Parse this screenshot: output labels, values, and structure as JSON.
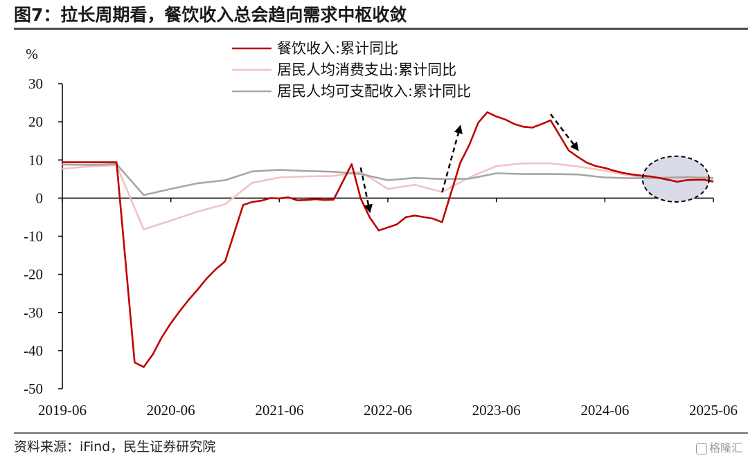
{
  "header": {
    "title": "图7：拉长周期看，餐饮收入总会趋向需求中枢收敛"
  },
  "footer": {
    "source": "资料来源：iFind，民生证券研究院",
    "watermark": "格隆汇"
  },
  "chart_data": {
    "type": "line",
    "title": "图7：拉长周期看，餐饮收入总会趋向需求中枢收敛",
    "ylabel": "%",
    "xlabel": "",
    "ylim": [
      -50,
      30
    ],
    "yticks": [
      30,
      20,
      10,
      0,
      -10,
      -20,
      -30,
      -40,
      -50
    ],
    "xlim": [
      "2019-06",
      "2025-06"
    ],
    "xticks": [
      "2019-06",
      "2020-06",
      "2021-06",
      "2022-06",
      "2023-06",
      "2024-06",
      "2025-06"
    ],
    "legend_position": "top-center",
    "grid": false,
    "series": [
      {
        "name": "餐饮收入:累计同比",
        "color": "#c00000",
        "points": [
          [
            "2019-06",
            9.4
          ],
          [
            "2019-07",
            9.4
          ],
          [
            "2019-08",
            9.4
          ],
          [
            "2019-09",
            9.4
          ],
          [
            "2019-10",
            9.4
          ],
          [
            "2019-11",
            9.4
          ],
          [
            "2019-12",
            9.4
          ],
          [
            "2020-02",
            -43.1
          ],
          [
            "2020-03",
            -44.3
          ],
          [
            "2020-04",
            -41.0
          ],
          [
            "2020-05",
            -36.5
          ],
          [
            "2020-06",
            -32.8
          ],
          [
            "2020-07",
            -29.6
          ],
          [
            "2020-08",
            -26.6
          ],
          [
            "2020-09",
            -23.9
          ],
          [
            "2020-10",
            -21.0
          ],
          [
            "2020-11",
            -18.6
          ],
          [
            "2020-12",
            -16.6
          ],
          [
            "2021-02",
            -1.8
          ],
          [
            "2021-03",
            -1.0
          ],
          [
            "2021-04",
            -0.7
          ],
          [
            "2021-05",
            0.0
          ],
          [
            "2021-06",
            -0.1
          ],
          [
            "2021-07",
            0.2
          ],
          [
            "2021-08",
            -0.6
          ],
          [
            "2021-09",
            -0.5
          ],
          [
            "2021-10",
            -0.3
          ],
          [
            "2021-11",
            -0.5
          ],
          [
            "2021-12",
            -0.4
          ],
          [
            "2022-02",
            8.9
          ],
          [
            "2022-03",
            -0.1
          ],
          [
            "2022-04",
            -5.1
          ],
          [
            "2022-05",
            -8.5
          ],
          [
            "2022-06",
            -7.7
          ],
          [
            "2022-07",
            -6.9
          ],
          [
            "2022-08",
            -5.0
          ],
          [
            "2022-09",
            -4.6
          ],
          [
            "2022-10",
            -5.0
          ],
          [
            "2022-11",
            -5.4
          ],
          [
            "2022-12",
            -6.3
          ],
          [
            "2023-02",
            9.2
          ],
          [
            "2023-03",
            13.9
          ],
          [
            "2023-04",
            19.8
          ],
          [
            "2023-05",
            22.5
          ],
          [
            "2023-06",
            21.4
          ],
          [
            "2023-07",
            20.6
          ],
          [
            "2023-08",
            19.4
          ],
          [
            "2023-09",
            18.7
          ],
          [
            "2023-10",
            18.5
          ],
          [
            "2023-11",
            19.4
          ],
          [
            "2023-12",
            20.4
          ],
          [
            "2024-02",
            12.5
          ],
          [
            "2024-03",
            10.8
          ],
          [
            "2024-04",
            9.3
          ],
          [
            "2024-05",
            8.4
          ],
          [
            "2024-06",
            7.9
          ],
          [
            "2024-07",
            7.2
          ],
          [
            "2024-08",
            6.6
          ],
          [
            "2024-09",
            6.2
          ],
          [
            "2024-10",
            5.9
          ],
          [
            "2024-11",
            5.7
          ],
          [
            "2024-12",
            5.3
          ],
          [
            "2025-02",
            4.3
          ],
          [
            "2025-03",
            4.7
          ],
          [
            "2025-04",
            4.8
          ],
          [
            "2025-05",
            4.8
          ],
          [
            "2025-06",
            4.3
          ]
        ]
      },
      {
        "name": "居民人均消费支出:累计同比",
        "color": "#f2c2c2",
        "points": [
          [
            "2019-06",
            7.7
          ],
          [
            "2019-09",
            8.3
          ],
          [
            "2019-12",
            8.6
          ],
          [
            "2020-03",
            -8.2
          ],
          [
            "2020-06",
            -5.9
          ],
          [
            "2020-09",
            -3.5
          ],
          [
            "2020-12",
            -1.6
          ],
          [
            "2021-03",
            4.0
          ],
          [
            "2021-06",
            5.4
          ],
          [
            "2021-09",
            5.7
          ],
          [
            "2021-12",
            5.8
          ],
          [
            "2022-03",
            6.9
          ],
          [
            "2022-06",
            2.4
          ],
          [
            "2022-09",
            3.5
          ],
          [
            "2022-12",
            1.6
          ],
          [
            "2023-03",
            5.4
          ],
          [
            "2023-06",
            8.4
          ],
          [
            "2023-09",
            9.1
          ],
          [
            "2023-12",
            9.1
          ],
          [
            "2024-03",
            8.3
          ],
          [
            "2024-06",
            7.2
          ],
          [
            "2024-09",
            5.8
          ],
          [
            "2024-12",
            5.3
          ],
          [
            "2025-03",
            5.2
          ],
          [
            "2025-06",
            4.8
          ]
        ]
      },
      {
        "name": "居民人均可支配收入:累计同比",
        "color": "#a6a6a6",
        "points": [
          [
            "2019-06",
            8.8
          ],
          [
            "2019-09",
            8.7
          ],
          [
            "2019-12",
            8.9
          ],
          [
            "2020-03",
            0.8
          ],
          [
            "2020-06",
            2.4
          ],
          [
            "2020-09",
            3.9
          ],
          [
            "2020-12",
            4.7
          ],
          [
            "2021-03",
            7.0
          ],
          [
            "2021-06",
            7.4
          ],
          [
            "2021-09",
            7.1
          ],
          [
            "2021-12",
            6.9
          ],
          [
            "2022-03",
            6.3
          ],
          [
            "2022-06",
            4.7
          ],
          [
            "2022-09",
            5.3
          ],
          [
            "2022-12",
            5.0
          ],
          [
            "2023-03",
            5.1
          ],
          [
            "2023-06",
            6.5
          ],
          [
            "2023-09",
            6.3
          ],
          [
            "2023-12",
            6.3
          ],
          [
            "2024-03",
            6.2
          ],
          [
            "2024-06",
            5.4
          ],
          [
            "2024-09",
            5.2
          ],
          [
            "2024-12",
            5.3
          ],
          [
            "2025-03",
            5.5
          ],
          [
            "2025-06",
            5.3
          ]
        ]
      }
    ]
  }
}
